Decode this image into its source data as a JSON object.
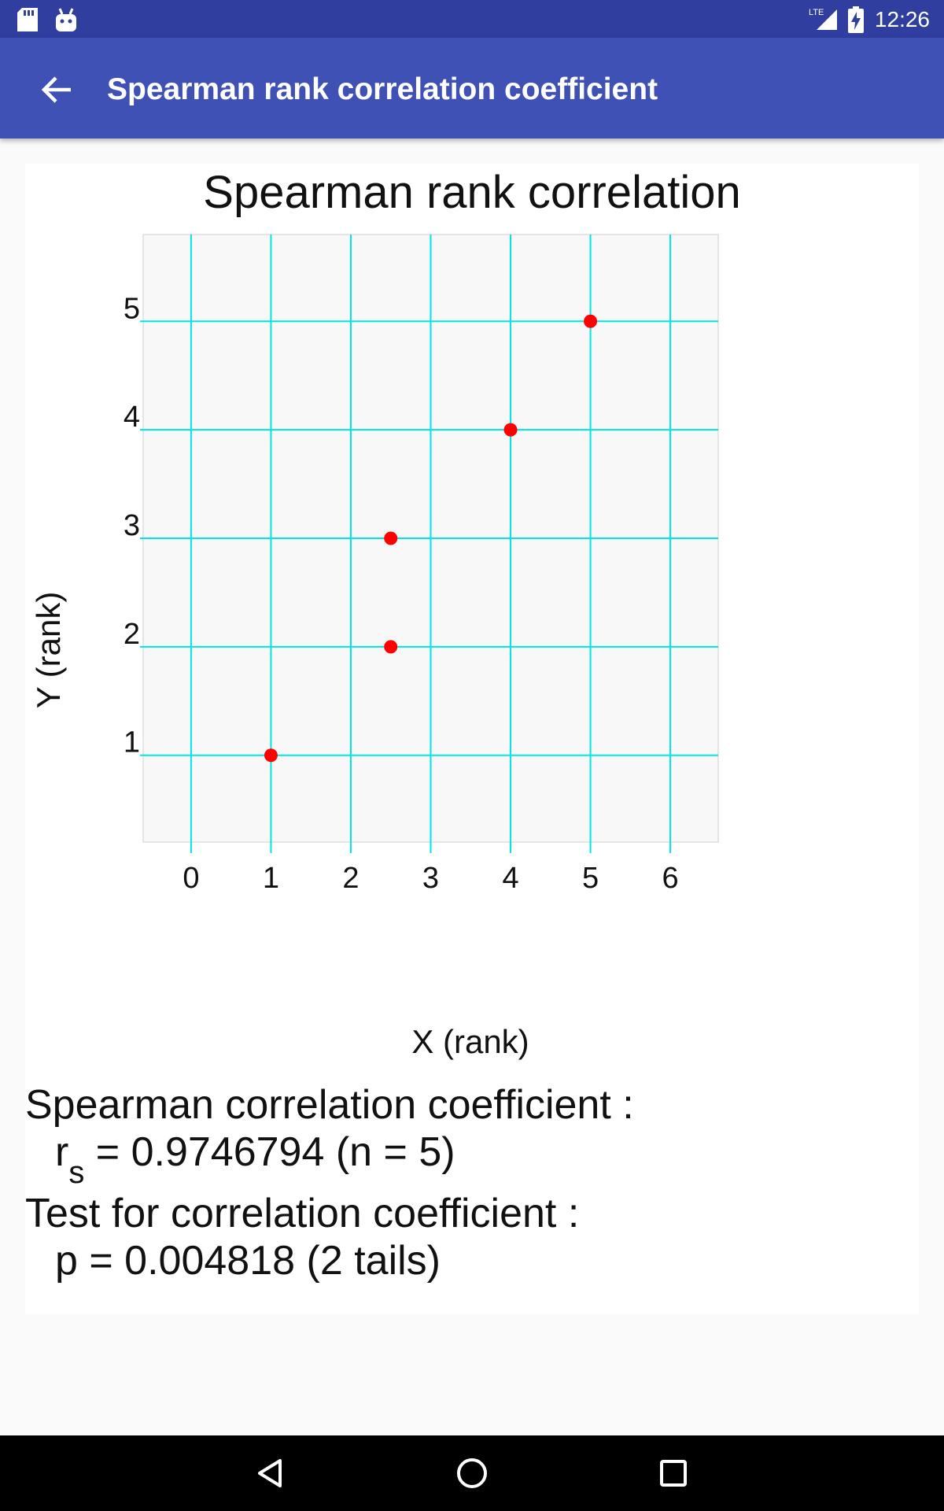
{
  "status_bar": {
    "time": "12:26",
    "network": "LTE",
    "icons": [
      "sd-card-icon",
      "android-icon",
      "lte-signal-icon",
      "battery-charging-icon"
    ]
  },
  "app_bar": {
    "title": "Spearman rank correlation coefficient",
    "back_icon": "arrow-left-icon"
  },
  "chart_data": {
    "type": "scatter",
    "title": "Spearman rank correlation",
    "xlabel": "X (rank)",
    "ylabel": "Y (rank)",
    "x_ticks": [
      0,
      1,
      2,
      3,
      4,
      5,
      6
    ],
    "y_ticks": [
      1,
      2,
      3,
      4,
      5
    ],
    "xlim": [
      -0.6,
      6.6
    ],
    "ylim": [
      0.2,
      5.8
    ],
    "grid": true,
    "colors": {
      "grid": "#00e5e5",
      "point": "#ff0000",
      "plot_bg": "#f8f8f8"
    },
    "points": [
      {
        "x": 1,
        "y": 1
      },
      {
        "x": 2.5,
        "y": 2
      },
      {
        "x": 2.5,
        "y": 3
      },
      {
        "x": 4,
        "y": 4
      },
      {
        "x": 5,
        "y": 5
      }
    ]
  },
  "results": {
    "coef_heading": "Spearman correlation coefficient :",
    "coef_symbol": "r",
    "coef_subscript": "s",
    "coef_value": " = 0.9746794 (n = 5)",
    "test_heading": "Test for correlation coefficient :",
    "test_value": "p = 0.004818 (2 tails)"
  },
  "nav_bar": {
    "icons": [
      "back-triangle-icon",
      "home-circle-icon",
      "recents-square-icon"
    ]
  }
}
